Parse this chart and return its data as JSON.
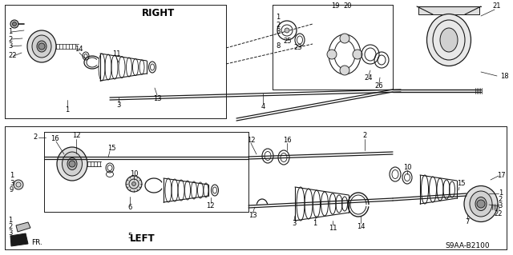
{
  "bg_color": "#ffffff",
  "diagram_code": "S9AA-B2100",
  "right_label": "RIGHT",
  "left_label": "LEFT",
  "fr_label": "FR.",
  "line_color": "#1a1a1a",
  "text_color": "#000000",
  "fs": 6.0,
  "fs_label": 8.5
}
